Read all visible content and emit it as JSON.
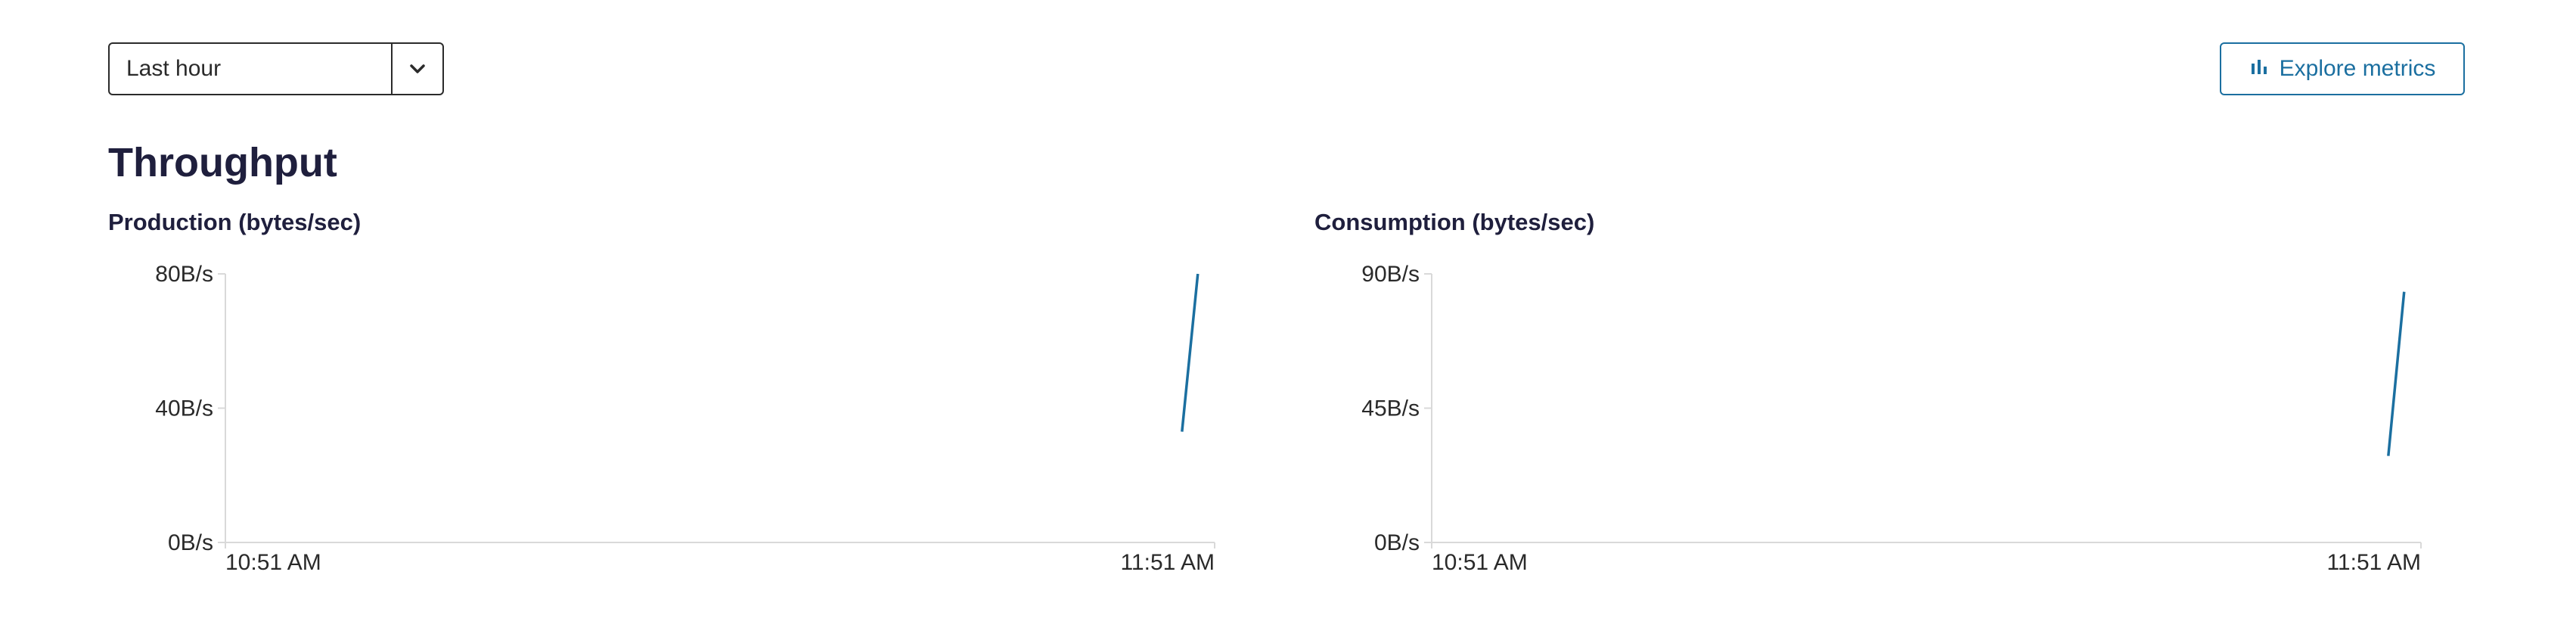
{
  "toolbar": {
    "time_range": "Last hour",
    "chevron_icon": "chevron-down-icon",
    "explore_icon": "bar-chart-icon",
    "explore_label": "Explore metrics",
    "accent": "#1b6fa0"
  },
  "section": {
    "title": "Throughput"
  },
  "chart_data": [
    {
      "type": "line",
      "title": "Production (bytes/sec)",
      "ylim": [
        0,
        80
      ],
      "y_ticks": [
        "80B/s",
        "40B/s",
        "0B/s"
      ],
      "x_ticks": [
        "10:51 AM",
        "11:51 AM"
      ],
      "series": [
        {
          "points": [
            {
              "t": 0.967,
              "y": 33
            },
            {
              "t": 0.983,
              "y": 80
            }
          ]
        }
      ],
      "line_color": "#1b6fa0"
    },
    {
      "type": "line",
      "title": "Consumption (bytes/sec)",
      "ylim": [
        0,
        90
      ],
      "y_ticks": [
        "90B/s",
        "45B/s",
        "0B/s"
      ],
      "x_ticks": [
        "10:51 AM",
        "11:51 AM"
      ],
      "series": [
        {
          "points": [
            {
              "t": 0.967,
              "y": 29
            },
            {
              "t": 0.983,
              "y": 84
            }
          ]
        }
      ],
      "line_color": "#1b6fa0"
    }
  ]
}
